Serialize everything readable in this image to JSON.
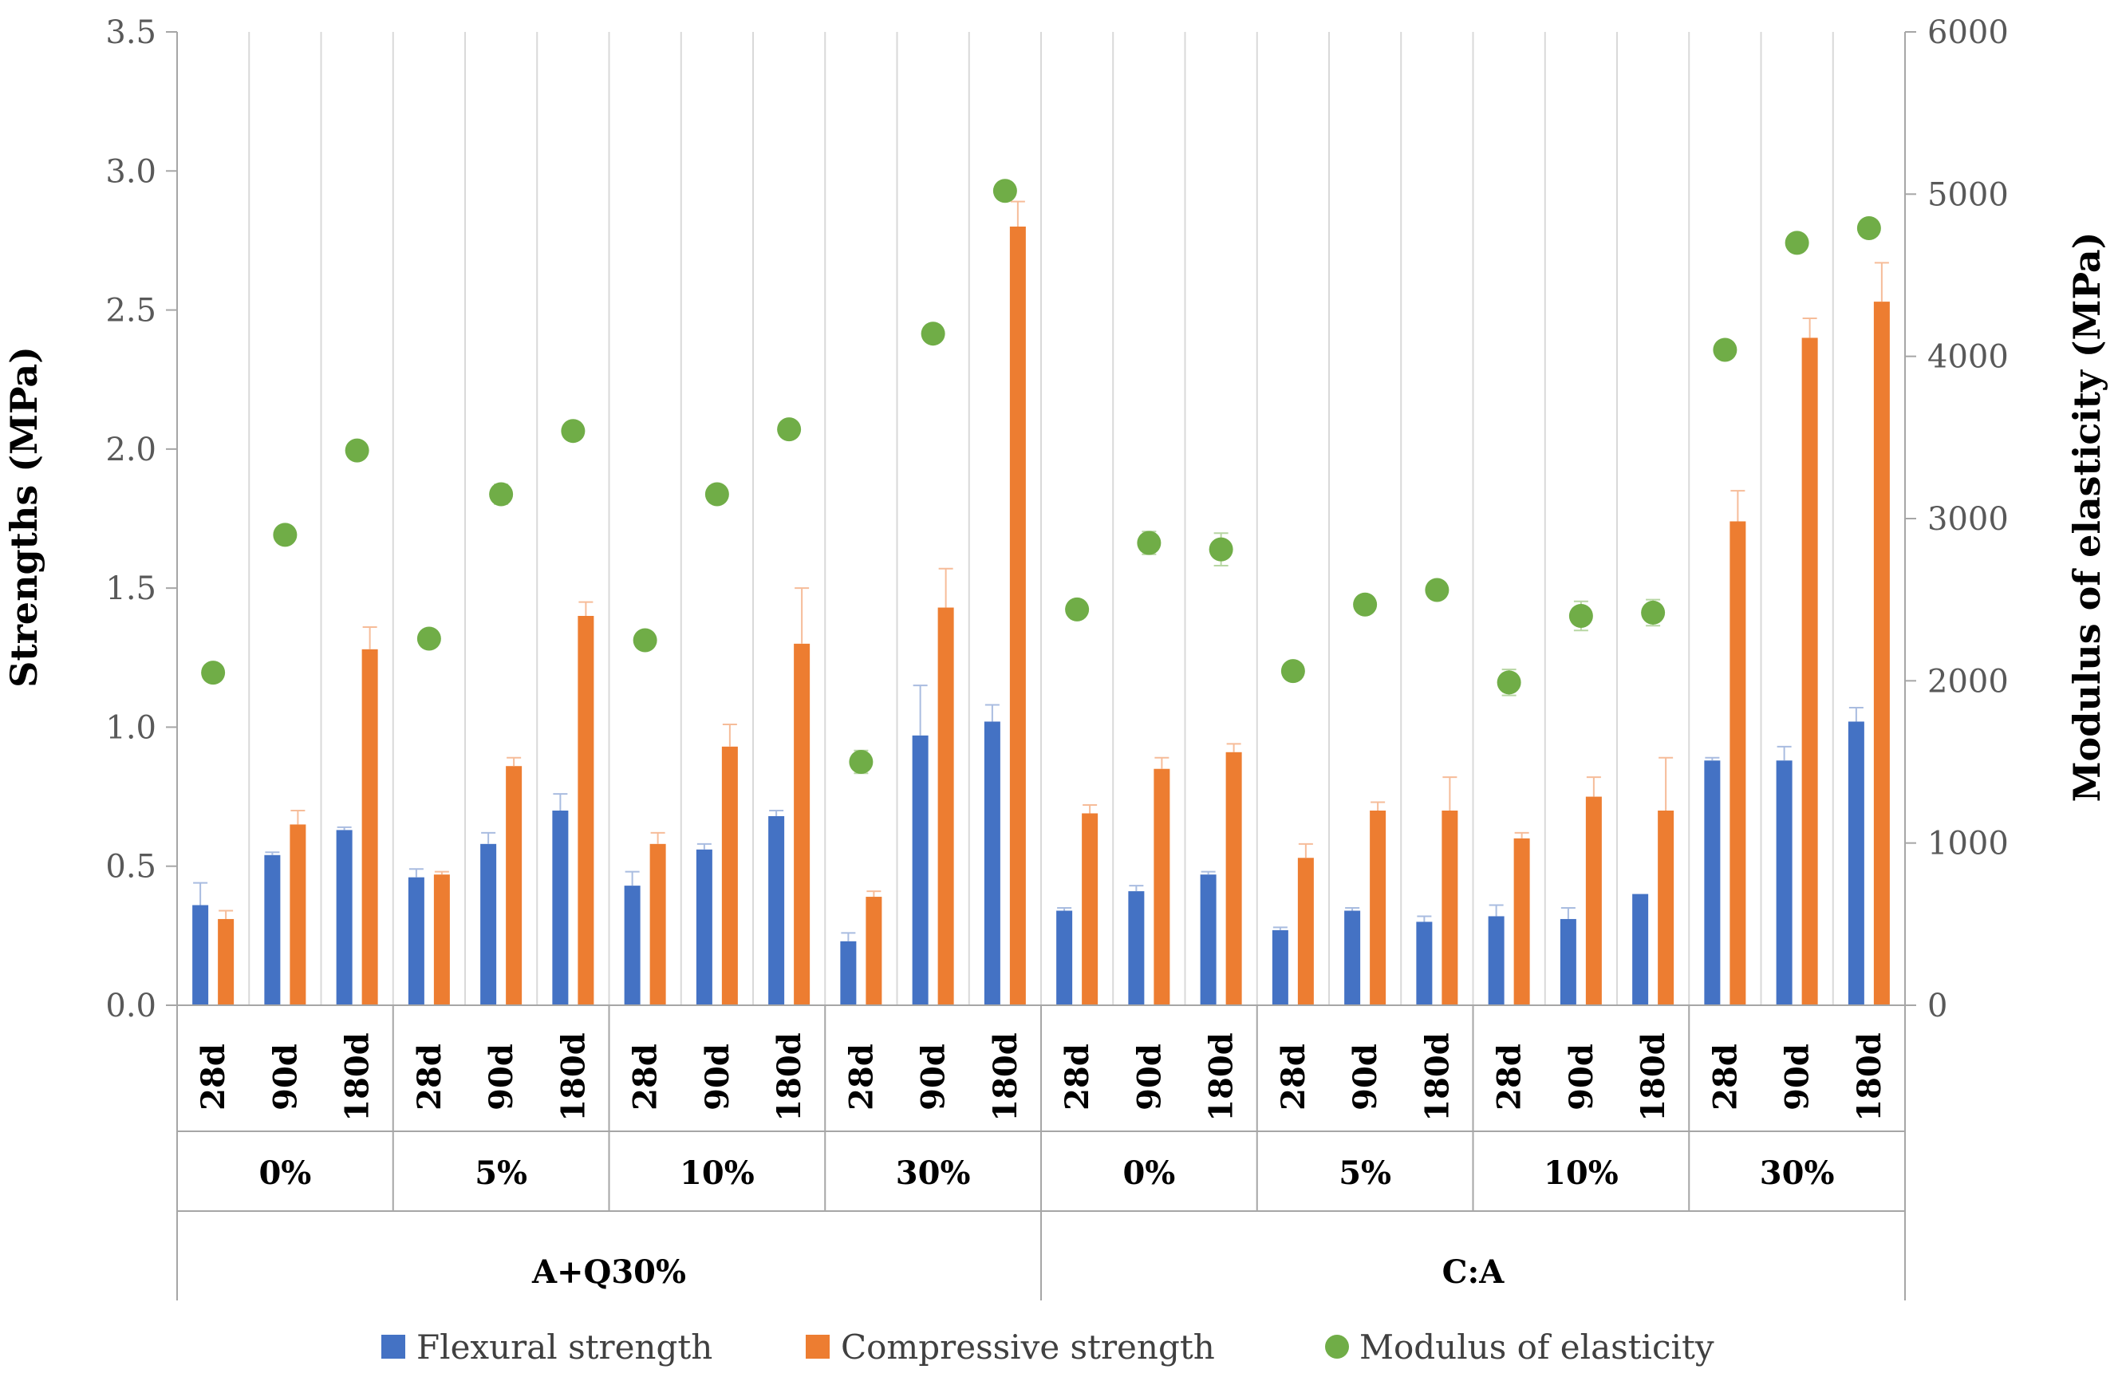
{
  "chart_data": {
    "type": "bar",
    "title": "",
    "ylabel": "Strengths (MPa)",
    "y2label": "Modulus of elasticity (MPa)",
    "ylim": [
      0,
      3.5
    ],
    "y2lim": [
      0,
      6000
    ],
    "yticks": [
      "0.0",
      "0.5",
      "1.0",
      "1.5",
      "2.0",
      "2.5",
      "3.0",
      "3.5"
    ],
    "y2ticks": [
      "0",
      "1000",
      "2000",
      "3000",
      "4000",
      "5000",
      "6000"
    ],
    "categories": [
      "28d",
      "90d",
      "180d",
      "28d",
      "90d",
      "180d",
      "28d",
      "90d",
      "180d",
      "28d",
      "90d",
      "180d",
      "28d",
      "90d",
      "180d",
      "28d",
      "90d",
      "180d",
      "28d",
      "90d",
      "180d",
      "28d",
      "90d",
      "180d"
    ],
    "level2": [
      "0%",
      "5%",
      "10%",
      "30%",
      "0%",
      "5%",
      "10%",
      "30%"
    ],
    "level3": [
      "A+Q30%",
      "C:A"
    ],
    "series": [
      {
        "name": "Flexural strength",
        "kind": "bar",
        "color": "#4472C4",
        "values": [
          0.36,
          0.54,
          0.63,
          0.46,
          0.58,
          0.7,
          0.43,
          0.56,
          0.68,
          0.23,
          0.97,
          1.02,
          0.34,
          0.41,
          0.47,
          0.27,
          0.34,
          0.3,
          0.32,
          0.31,
          0.4,
          0.88,
          0.88,
          1.02
        ],
        "errors": [
          0.08,
          0.01,
          0.01,
          0.03,
          0.04,
          0.06,
          0.05,
          0.02,
          0.02,
          0.03,
          0.18,
          0.06,
          0.01,
          0.02,
          0.01,
          0.01,
          0.01,
          0.02,
          0.04,
          0.04,
          0.0,
          0.01,
          0.05,
          0.05
        ]
      },
      {
        "name": "Compressive strength",
        "kind": "bar",
        "color": "#ED7D31",
        "values": [
          0.31,
          0.65,
          1.28,
          0.47,
          0.86,
          1.4,
          0.58,
          0.93,
          1.3,
          0.39,
          1.43,
          2.8,
          0.69,
          0.85,
          0.91,
          0.53,
          0.7,
          0.7,
          0.6,
          0.75,
          0.7,
          1.74,
          2.4,
          2.53
        ],
        "errors": [
          0.03,
          0.05,
          0.08,
          0.01,
          0.03,
          0.05,
          0.04,
          0.08,
          0.2,
          0.02,
          0.14,
          0.09,
          0.03,
          0.04,
          0.03,
          0.05,
          0.03,
          0.12,
          0.02,
          0.07,
          0.19,
          0.11,
          0.07,
          0.14
        ]
      },
      {
        "name": "Modulus of elasticity",
        "kind": "scatter",
        "axis": "right",
        "color": "#70AD47",
        "values": [
          2050,
          2900,
          3420,
          2260,
          3150,
          3540,
          2250,
          3150,
          3550,
          1500,
          4140,
          5020,
          2440,
          2850,
          2810,
          2060,
          2470,
          2560,
          1990,
          2400,
          2420,
          4040,
          4700,
          4790
        ],
        "errors": [
          0,
          0,
          0,
          0,
          60,
          0,
          0,
          0,
          0,
          70,
          0,
          0,
          50,
          70,
          100,
          0,
          0,
          40,
          80,
          90,
          80,
          0,
          0,
          0
        ]
      }
    ],
    "legend": "bottom"
  }
}
